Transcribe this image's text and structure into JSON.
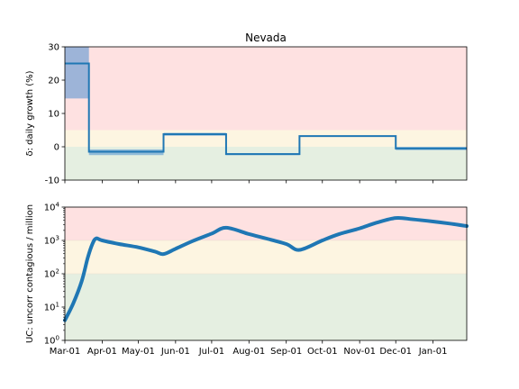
{
  "chart_data": [
    {
      "type": "line",
      "subtype": "step",
      "title": "Nevada",
      "ylabel": "δ: daily growth (%)",
      "ylim": [
        -10,
        30
      ],
      "yticks": [
        -10,
        0,
        10,
        20,
        30
      ],
      "xlim": [
        "2020-03-01",
        "2021-01-29"
      ],
      "xticks": [
        "2020-03-01",
        "2020-04-01",
        "2020-05-01",
        "2020-06-01",
        "2020-07-01",
        "2020-08-01",
        "2020-09-01",
        "2020-10-01",
        "2020-11-01",
        "2020-12-01",
        "2021-01-01"
      ],
      "bands": [
        {
          "from": -10,
          "to": 0,
          "color": "#e5efe1"
        },
        {
          "from": 0,
          "to": 5,
          "color": "#fdf5e1"
        },
        {
          "from": 5,
          "to": 30,
          "color": "#fee1e1"
        }
      ],
      "series": [
        {
          "color": "#1f77b4",
          "fill_color": "#4c8fd2",
          "segments": [
            {
              "start": "2020-03-01",
              "end": "2020-03-21",
              "value": 25,
              "lower": 14.5,
              "upper": 30
            },
            {
              "start": "2020-03-21",
              "end": "2020-05-22",
              "value": -1.5,
              "lower": -2.5,
              "upper": -0.8
            },
            {
              "start": "2020-05-22",
              "end": "2020-07-13",
              "value": 3.8,
              "lower": 3.3,
              "upper": 4.2
            },
            {
              "start": "2020-07-13",
              "end": "2020-09-12",
              "value": -2.2,
              "lower": -2.5,
              "upper": -1.9
            },
            {
              "start": "2020-09-12",
              "end": "2020-12-01",
              "value": 3.2,
              "lower": 3.0,
              "upper": 3.4
            },
            {
              "start": "2020-12-01",
              "end": "2021-01-29",
              "value": -0.5,
              "lower": -1.0,
              "upper": 0.0
            }
          ]
        }
      ]
    },
    {
      "type": "line",
      "ylabel": "UC: uncorr contagious / million",
      "yscale": "log",
      "ylim": [
        1,
        10000
      ],
      "yticks": [
        1,
        10,
        100,
        1000,
        10000
      ],
      "ytick_labels": [
        {
          "base": "10",
          "exp": "0"
        },
        {
          "base": "10",
          "exp": "1"
        },
        {
          "base": "10",
          "exp": "2"
        },
        {
          "base": "10",
          "exp": "3"
        },
        {
          "base": "10",
          "exp": "4"
        }
      ],
      "xlim": [
        "2020-03-01",
        "2021-01-29"
      ],
      "xticks": [
        "2020-03-01",
        "2020-04-01",
        "2020-05-01",
        "2020-06-01",
        "2020-07-01",
        "2020-08-01",
        "2020-09-01",
        "2020-10-01",
        "2020-11-01",
        "2020-12-01",
        "2021-01-01"
      ],
      "xtick_labels": [
        "Mar-01",
        "Apr-01",
        "May-01",
        "Jun-01",
        "Jul-01",
        "Aug-01",
        "Sep-01",
        "Oct-01",
        "Nov-01",
        "Dec-01",
        "Jan-01"
      ],
      "bands": [
        {
          "from": 1,
          "to": 100,
          "color": "#e5efe1"
        },
        {
          "from": 100,
          "to": 1000,
          "color": "#fdf5e1"
        },
        {
          "from": 1000,
          "to": 10000,
          "color": "#fee1e1"
        }
      ],
      "series": [
        {
          "color": "#1f77b4",
          "x": [
            "2020-03-01",
            "2020-03-08",
            "2020-03-15",
            "2020-03-20",
            "2020-03-24",
            "2020-03-27",
            "2020-04-01",
            "2020-04-15",
            "2020-05-01",
            "2020-05-15",
            "2020-05-22",
            "2020-06-01",
            "2020-06-15",
            "2020-07-01",
            "2020-07-13",
            "2020-08-01",
            "2020-08-15",
            "2020-09-01",
            "2020-09-12",
            "2020-10-01",
            "2020-10-15",
            "2020-11-01",
            "2020-11-15",
            "2020-12-01",
            "2020-12-15",
            "2021-01-01",
            "2021-01-15",
            "2021-01-29"
          ],
          "y": [
            4,
            13,
            60,
            300,
            800,
            1150,
            1000,
            780,
            620,
            460,
            390,
            560,
            950,
            1600,
            2400,
            1550,
            1150,
            780,
            520,
            1000,
            1550,
            2300,
            3400,
            4700,
            4300,
            3700,
            3200,
            2700
          ]
        }
      ]
    }
  ]
}
